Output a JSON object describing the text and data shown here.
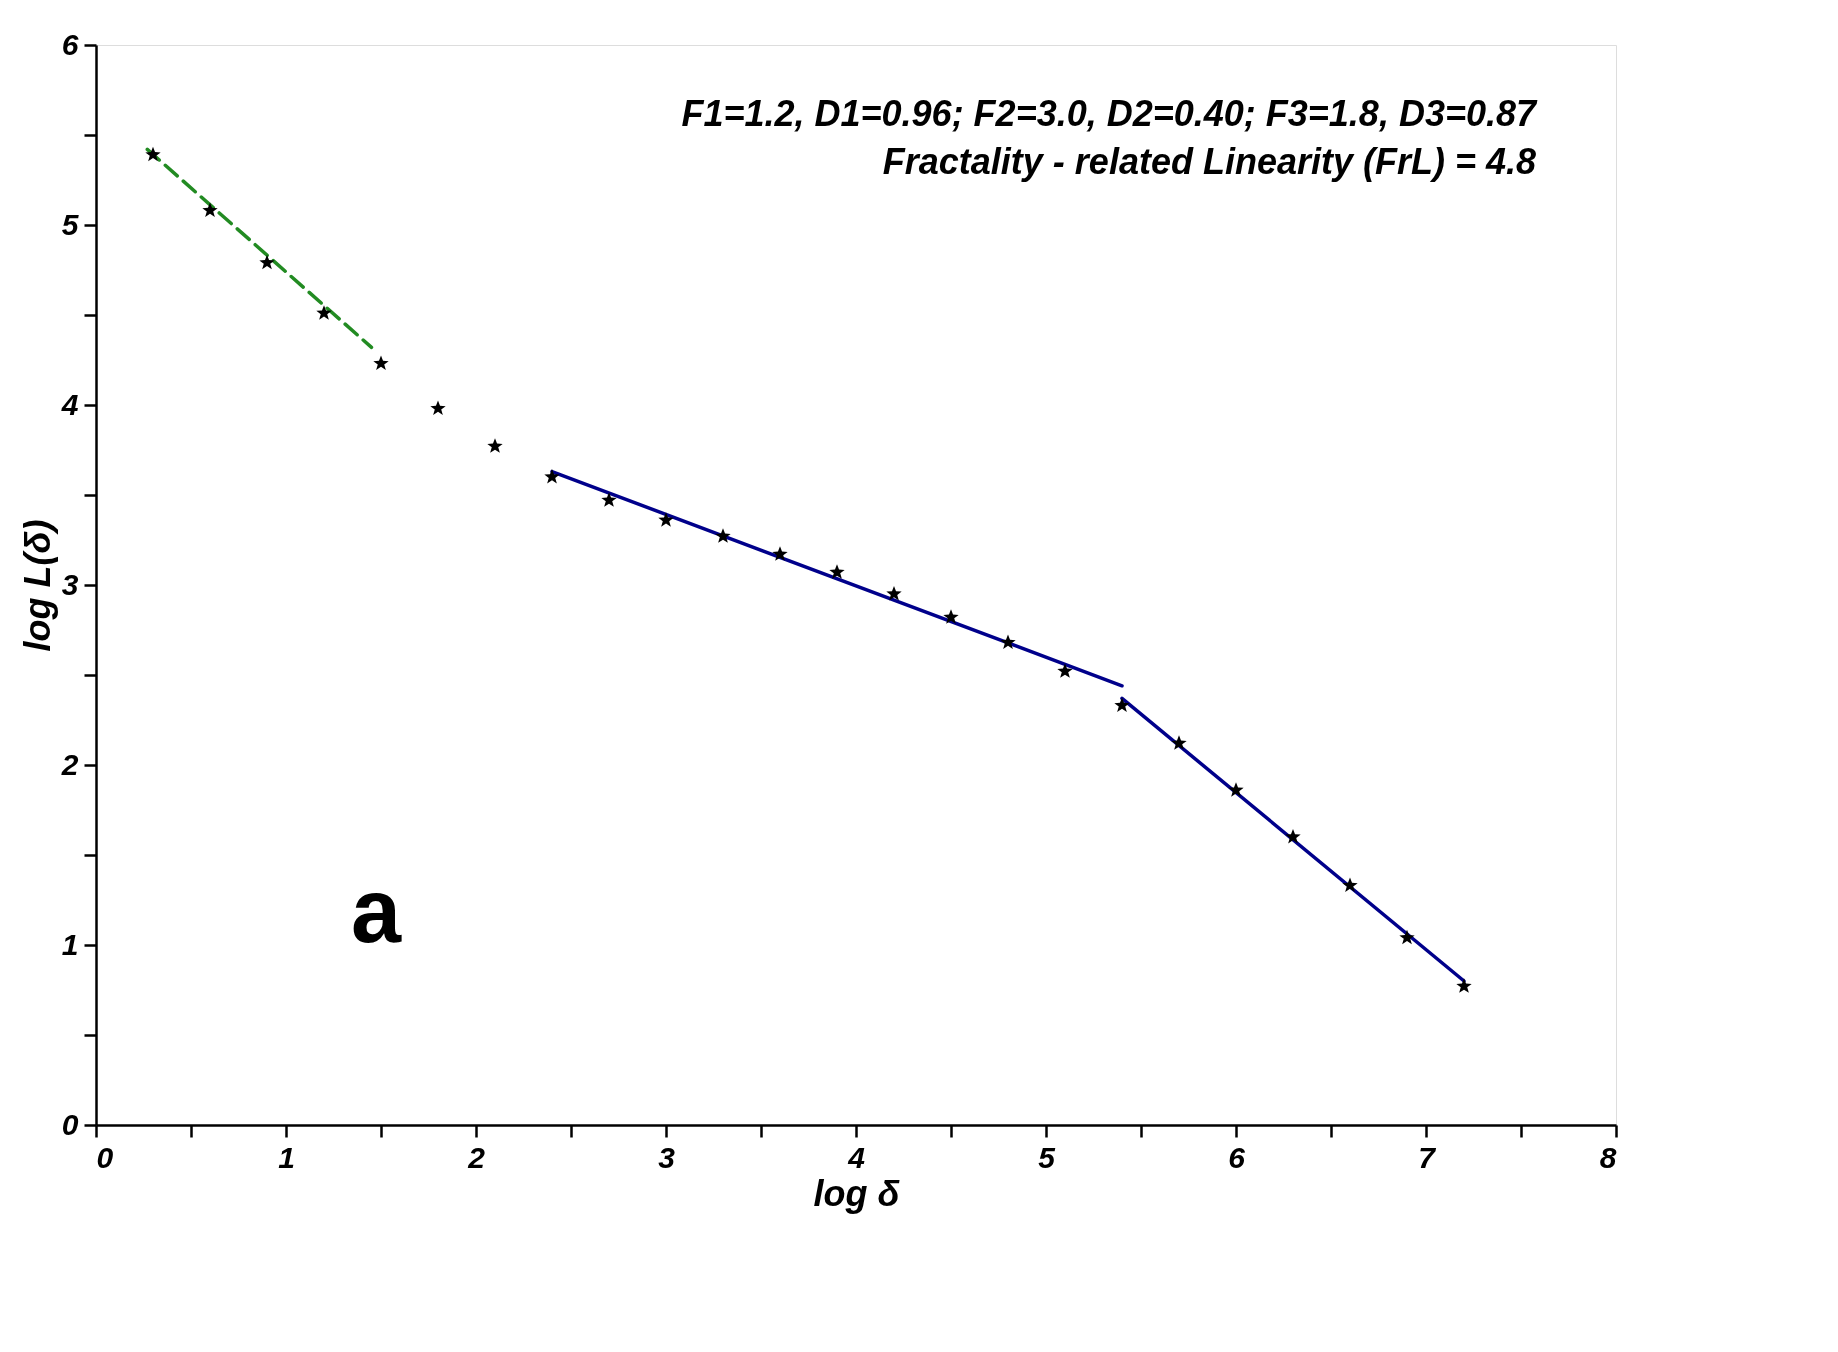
{
  "chart_data": {
    "type": "scatter",
    "xlabel": "log δ",
    "ylabel": "log L(δ)",
    "xlim": [
      0,
      8
    ],
    "ylim": [
      0,
      6
    ],
    "xticks": [
      0,
      {
        "value": 0.5,
        "label": null
      },
      1,
      {
        "value": 1.5,
        "label": null
      },
      2,
      {
        "value": 2.5,
        "label": null
      },
      3,
      {
        "value": 3.5,
        "label": null
      },
      4,
      {
        "value": 4.5,
        "label": null
      },
      5,
      {
        "value": 5.5,
        "label": null
      },
      6,
      {
        "value": 6.5,
        "label": null
      },
      7,
      {
        "value": 7.5,
        "label": null
      },
      8
    ],
    "yticks": [
      0,
      {
        "value": 0.5,
        "label": null
      },
      1,
      {
        "value": 1.5,
        "label": null
      },
      2,
      {
        "value": 2.5,
        "label": null
      },
      3,
      {
        "value": 3.5,
        "label": null
      },
      4,
      {
        "value": 4.5,
        "label": null
      },
      5,
      {
        "value": 5.5,
        "label": null
      },
      6
    ],
    "grid": false,
    "series": [
      {
        "color": "#000000",
        "marker": "star",
        "x": [
          0.3,
          0.6,
          0.9,
          1.2,
          1.5,
          1.8,
          2.1,
          2.4,
          2.7,
          3.0,
          3.3,
          3.6,
          3.9,
          4.2,
          4.5,
          4.8,
          5.1,
          5.4,
          5.7,
          6.0,
          6.3,
          6.6,
          6.9,
          7.2
        ],
        "values": [
          5.39,
          5.08,
          4.79,
          4.51,
          4.23,
          3.98,
          3.77,
          3.6,
          3.47,
          3.36,
          3.27,
          3.17,
          3.07,
          2.95,
          2.82,
          2.68,
          2.52,
          2.33,
          2.12,
          1.86,
          1.6,
          1.33,
          1.04,
          0.77
        ]
      },
      {
        "type": "line",
        "color": "#228b22",
        "line_style": "dashed",
        "marker": "none",
        "x": [
          0.27,
          1.45
        ],
        "values": [
          5.42,
          4.32
        ]
      },
      {
        "type": "line",
        "color": "#00008b",
        "line_style": "solid",
        "marker": "none",
        "x": [
          2.4,
          5.4
        ],
        "values": [
          3.63,
          2.44
        ]
      },
      {
        "type": "line",
        "color": "#00008b",
        "line_style": "solid",
        "marker": "none",
        "x": [
          5.4,
          7.2
        ],
        "values": [
          2.37,
          0.8
        ]
      }
    ],
    "annotations": [
      "F1=1.2, D1=0.96; F2=3.0, D2=0.40; F3=1.8, D3=0.87",
      "Fractality - related Linearity (FrL) = 4.8",
      "a"
    ]
  }
}
